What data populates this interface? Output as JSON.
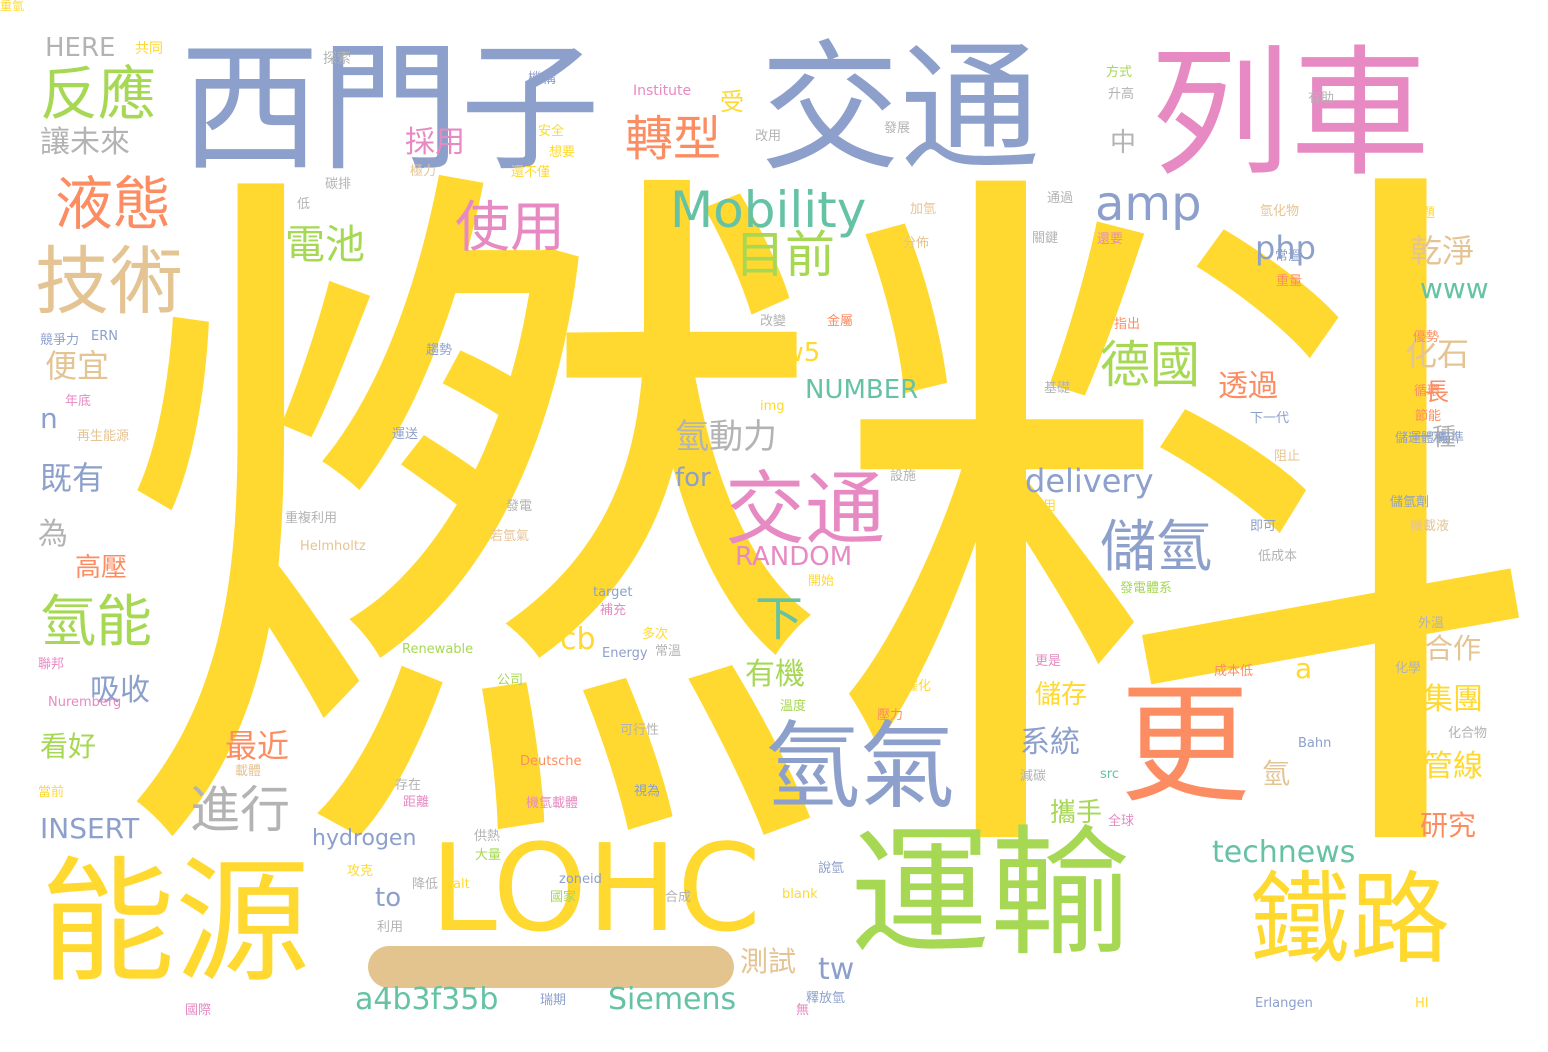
{
  "palette": {
    "yellow": "#ffd92f",
    "green": "#a6d854",
    "blue": "#8da0cb",
    "pink": "#e78ac3",
    "orange": "#fc8d62",
    "teal": "#66c2a5",
    "tan": "#e5c494",
    "gray": "#b3b3b3"
  },
  "words": [
    {
      "text": "燃料",
      "color": "yellow"
    },
    {
      "text": "西門子",
      "color": "blue"
    },
    {
      "text": "交通",
      "color": "blue"
    },
    {
      "text": "列車",
      "color": "pink"
    },
    {
      "text": "運輸",
      "color": "green"
    },
    {
      "text": "能源",
      "color": "yellow"
    },
    {
      "text": "LOHC",
      "color": "yellow"
    },
    {
      "text": "鐵路",
      "color": "yellow"
    },
    {
      "text": "更",
      "color": "orange"
    },
    {
      "text": "氫氣",
      "color": "blue"
    },
    {
      "text": "交通",
      "color": "pink"
    },
    {
      "text": "技術",
      "color": "tan"
    },
    {
      "text": "Mobility",
      "color": "teal"
    },
    {
      "text": "amp",
      "color": "blue"
    },
    {
      "text": "液態",
      "color": "orange"
    },
    {
      "text": "反應",
      "color": "green"
    },
    {
      "text": "轉型",
      "color": "orange"
    },
    {
      "text": "使用",
      "color": "pink"
    },
    {
      "text": "目前",
      "color": "green"
    },
    {
      "text": "氫能",
      "color": "green"
    },
    {
      "text": "德國",
      "color": "green"
    },
    {
      "text": "儲氫",
      "color": "blue"
    },
    {
      "text": "進行",
      "color": "gray"
    },
    {
      "text": "電池",
      "color": "green"
    },
    {
      "text": "氫動力",
      "color": "gray"
    },
    {
      "text": "下",
      "color": "teal"
    },
    {
      "text": "讓未來",
      "color": "gray"
    },
    {
      "text": "php",
      "color": "blue"
    },
    {
      "text": "乾淨",
      "color": "tan"
    },
    {
      "text": "www",
      "color": "teal"
    },
    {
      "text": "www5",
      "color": "yellow"
    },
    {
      "text": "NUMBER",
      "color": "teal"
    },
    {
      "text": "delivery",
      "color": "blue"
    },
    {
      "text": "RANDOM",
      "color": "pink"
    },
    {
      "text": "化石",
      "color": "tan"
    },
    {
      "text": "透過",
      "color": "orange"
    },
    {
      "text": "便宜",
      "color": "tan"
    },
    {
      "text": "既有",
      "color": "blue"
    },
    {
      "text": "高壓",
      "color": "orange"
    },
    {
      "text": "吸收",
      "color": "blue"
    },
    {
      "text": "看好",
      "color": "green"
    },
    {
      "text": "最近",
      "color": "orange"
    },
    {
      "text": "有機",
      "color": "green"
    },
    {
      "text": "系統",
      "color": "blue"
    },
    {
      "text": "儲存",
      "color": "yellow"
    },
    {
      "text": "集團",
      "color": "yellow"
    },
    {
      "text": "管線",
      "color": "yellow"
    },
    {
      "text": "合作",
      "color": "tan"
    },
    {
      "text": "研究",
      "color": "orange"
    },
    {
      "text": "攜手",
      "color": "green"
    },
    {
      "text": "technews",
      "color": "teal"
    },
    {
      "text": "INSERT",
      "color": "blue"
    },
    {
      "text": "hydrogen",
      "color": "blue"
    },
    {
      "text": "a4b3f35b",
      "color": "teal"
    },
    {
      "text": "Siemens",
      "color": "teal"
    },
    {
      "text": "to",
      "color": "blue"
    },
    {
      "text": "tw",
      "color": "blue"
    },
    {
      "text": "測試",
      "color": "tan"
    },
    {
      "text": "cb",
      "color": "yellow"
    },
    {
      "text": "for",
      "color": "blue"
    },
    {
      "text": "採用",
      "color": "pink"
    },
    {
      "text": "HERE",
      "color": "gray"
    },
    {
      "text": "一種",
      "color": "gray"
    },
    {
      "text": "中",
      "color": "gray"
    },
    {
      "text": "受",
      "color": "yellow"
    },
    {
      "text": "長",
      "color": "orange"
    },
    {
      "text": "a",
      "color": "yellow"
    },
    {
      "text": "為",
      "color": "gray"
    },
    {
      "text": "n",
      "color": "blue"
    },
    {
      "text": "氫",
      "color": "tan"
    },
    {
      "text": "共同",
      "color": "yellow"
    },
    {
      "text": "探索",
      "color": "gray"
    },
    {
      "text": "機構",
      "color": "blue"
    },
    {
      "text": "Institute",
      "color": "pink"
    },
    {
      "text": "方式",
      "color": "green"
    },
    {
      "text": "升高",
      "color": "gray"
    },
    {
      "text": "有助",
      "color": "gray"
    },
    {
      "text": "安全",
      "color": "yellow"
    },
    {
      "text": "想要",
      "color": "yellow"
    },
    {
      "text": "改用",
      "color": "gray"
    },
    {
      "text": "發展",
      "color": "gray"
    },
    {
      "text": "極力",
      "color": "tan"
    },
    {
      "text": "還不僅",
      "color": "yellow"
    },
    {
      "text": "碳排",
      "color": "gray"
    },
    {
      "text": "低",
      "color": "gray"
    },
    {
      "text": "通過",
      "color": "gray"
    },
    {
      "text": "加氫",
      "color": "tan"
    },
    {
      "text": "氫化物",
      "color": "tan"
    },
    {
      "text": "課題",
      "color": "yellow"
    },
    {
      "text": "分佈",
      "color": "tan"
    },
    {
      "text": "關鍵",
      "color": "gray"
    },
    {
      "text": "還要",
      "color": "pink"
    },
    {
      "text": "常溫",
      "color": "blue"
    },
    {
      "text": "重量",
      "color": "orange"
    },
    {
      "text": "優勢",
      "color": "orange"
    },
    {
      "text": "改變",
      "color": "gray"
    },
    {
      "text": "金屬",
      "color": "orange"
    },
    {
      "text": "指出",
      "color": "orange"
    },
    {
      "text": "競爭力",
      "color": "blue"
    },
    {
      "text": "ERN",
      "color": "blue"
    },
    {
      "text": "年底",
      "color": "pink"
    },
    {
      "text": "趨勢",
      "color": "blue"
    },
    {
      "text": "href",
      "color": "yellow"
    },
    {
      "text": "基礎",
      "color": "gray"
    },
    {
      "text": "循環",
      "color": "orange"
    },
    {
      "text": "節能",
      "color": "orange"
    },
    {
      "text": "再生能源",
      "color": "tan"
    },
    {
      "text": "運送",
      "color": "blue"
    },
    {
      "text": "img",
      "color": "yellow"
    },
    {
      "text": "下一代",
      "color": "blue"
    },
    {
      "text": "儲運體積",
      "color": "blue"
    },
    {
      "text": "瞄準",
      "color": "blue"
    },
    {
      "text": "阻止",
      "color": "tan"
    },
    {
      "text": "設施",
      "color": "gray"
    },
    {
      "text": "發電",
      "color": "gray"
    },
    {
      "text": "不用",
      "color": "yellow"
    },
    {
      "text": "儲氫劑",
      "color": "blue"
    },
    {
      "text": "重複利用",
      "color": "gray"
    },
    {
      "text": "若氫氣",
      "color": "tan"
    },
    {
      "text": "即可",
      "color": "blue"
    },
    {
      "text": "機載液",
      "color": "tan"
    },
    {
      "text": "Helmholtz",
      "color": "tan"
    },
    {
      "text": "低成本",
      "color": "gray"
    },
    {
      "text": "開始",
      "color": "yellow"
    },
    {
      "text": "發電體系",
      "color": "green"
    },
    {
      "text": "target",
      "color": "blue"
    },
    {
      "text": "補充",
      "color": "pink"
    },
    {
      "text": "border",
      "color": "yellow"
    },
    {
      "text": "多次",
      "color": "yellow"
    },
    {
      "text": "外溫",
      "color": "gray"
    },
    {
      "text": "Energy",
      "color": "blue"
    },
    {
      "text": "常溫",
      "color": "gray"
    },
    {
      "text": "Renewable",
      "color": "green"
    },
    {
      "text": "更是",
      "color": "pink"
    },
    {
      "text": "成本低",
      "color": "orange"
    },
    {
      "text": "化學",
      "color": "gray"
    },
    {
      "text": "聯邦",
      "color": "pink"
    },
    {
      "text": "Nuremberg",
      "color": "pink"
    },
    {
      "text": "公司",
      "color": "green"
    },
    {
      "text": "催化",
      "color": "yellow"
    },
    {
      "text": "溫度",
      "color": "green"
    },
    {
      "text": "壓力",
      "color": "orange"
    },
    {
      "text": "可行性",
      "color": "gray"
    },
    {
      "text": "Bahn",
      "color": "blue"
    },
    {
      "text": "化合物",
      "color": "gray"
    },
    {
      "text": "載體",
      "color": "tan"
    },
    {
      "text": "Deutsche",
      "color": "orange"
    },
    {
      "text": "存在",
      "color": "gray"
    },
    {
      "text": "src",
      "color": "teal"
    },
    {
      "text": "減碳",
      "color": "gray"
    },
    {
      "text": "視為",
      "color": "blue"
    },
    {
      "text": "當前",
      "color": "yellow"
    },
    {
      "text": "機氫載體",
      "color": "pink"
    },
    {
      "text": "距離",
      "color": "pink"
    },
    {
      "text": "供熱",
      "color": "gray"
    },
    {
      "text": "大量",
      "color": "green"
    },
    {
      "text": "全球",
      "color": "pink"
    },
    {
      "text": "攻克",
      "color": "yellow"
    },
    {
      "text": "說氫",
      "color": "blue"
    },
    {
      "text": "降低",
      "color": "gray"
    },
    {
      "text": "alt",
      "color": "yellow"
    },
    {
      "text": "zoneid",
      "color": "blue"
    },
    {
      "text": "國家",
      "color": "green"
    },
    {
      "text": "合成",
      "color": "gray"
    },
    {
      "text": "blank",
      "color": "yellow"
    },
    {
      "text": "利用",
      "color": "gray"
    },
    {
      "text": "瑞期",
      "color": "blue"
    },
    {
      "text": "釋放氫",
      "color": "blue"
    },
    {
      "text": "國際",
      "color": "pink"
    },
    {
      "text": "無",
      "color": "pink"
    },
    {
      "text": "HI",
      "color": "yellow"
    },
    {
      "text": "Erlangen",
      "color": "blue"
    },
    {
      "text": "重氫",
      "color": "yellow"
    }
  ]
}
